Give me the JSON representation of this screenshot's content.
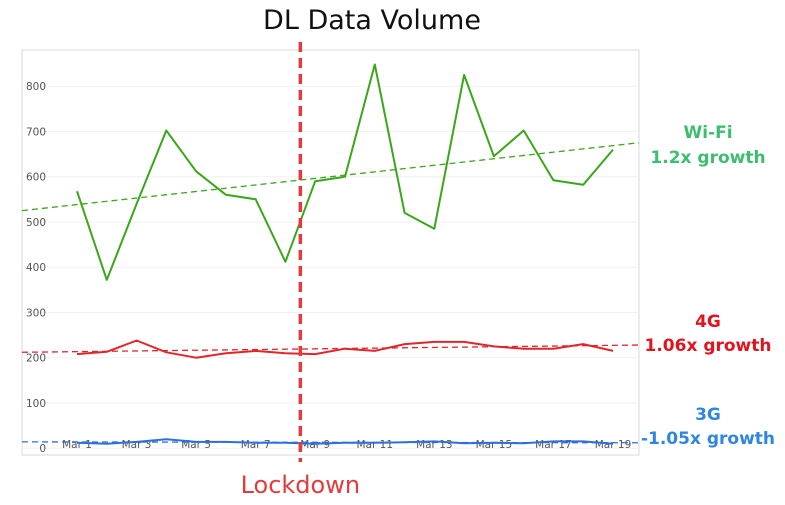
{
  "chart_data": {
    "type": "line",
    "title": "DL Data Volume",
    "xlabel": "",
    "ylabel": "",
    "ylim": [
      -15,
      880
    ],
    "yticks": [
      0,
      100,
      200,
      300,
      400,
      500,
      600,
      700,
      800
    ],
    "x": [
      "Mar 1",
      "Mar 2",
      "Mar 3",
      "Mar 4",
      "Mar 5",
      "Mar 6",
      "Mar 7",
      "Mar 8",
      "Mar 9",
      "Mar 10",
      "Mar 11",
      "Mar 12",
      "Mar 13",
      "Mar 14",
      "Mar 15",
      "Mar 16",
      "Mar 17",
      "Mar 18",
      "Mar 19"
    ],
    "xtick_labels": [
      "Mar 1",
      "Mar 3",
      "Mar 5",
      "Mar 7",
      "Mar 9",
      "Mar 11",
      "Mar 13",
      "Mar 15",
      "Mar 17",
      "Mar 19"
    ],
    "grid": true,
    "series": [
      {
        "key": "wifi",
        "color": "#3aa61a",
        "values": [
          568,
          372,
          540,
          702,
          612,
          560,
          550,
          412,
          590,
          600,
          848,
          520,
          485,
          825,
          645,
          702,
          592,
          582,
          660
        ],
        "trend": [
          525,
          675
        ],
        "annotation": [
          "Wi-Fi",
          "1.2x growth"
        ],
        "annotation_color": "#3dbd6e"
      },
      {
        "key": "4g",
        "color": "#e0262b",
        "values": [
          208,
          213,
          238,
          212,
          200,
          210,
          215,
          210,
          208,
          220,
          215,
          230,
          235,
          235,
          225,
          220,
          220,
          230,
          215
        ],
        "trend": [
          212,
          228
        ],
        "annotation": [
          "4G",
          "1.06x growth"
        ],
        "annotation_color": "#e0141e"
      },
      {
        "key": "3g",
        "color": "#2f6fdb",
        "values": [
          12,
          10,
          14,
          20,
          14,
          14,
          12,
          12,
          10,
          12,
          12,
          13,
          15,
          11,
          12,
          11,
          15,
          15,
          10
        ],
        "trend": [
          14,
          12
        ],
        "annotation": [
          "3G",
          "-1.05x growth"
        ],
        "annotation_color": "#2f86e0"
      }
    ],
    "event": {
      "label": "Lockdown",
      "x_index": 7.5,
      "color": "#e23b3b"
    }
  }
}
